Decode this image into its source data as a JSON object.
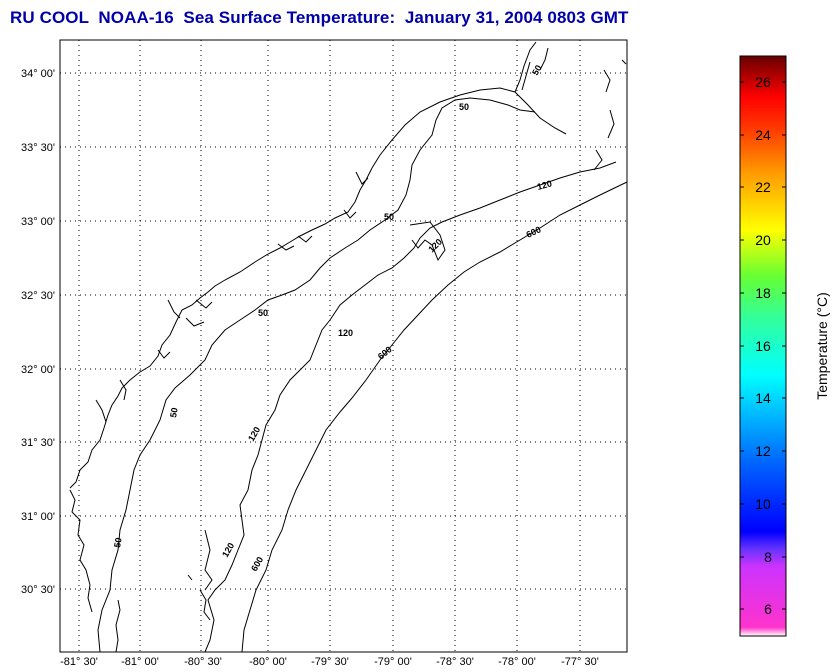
{
  "title": "RU COOL  NOAA-16  Sea Surface Temperature:  January 31, 2004 0803 GMT",
  "map": {
    "lat_labels": [
      "34° 00'",
      "33° 30'",
      "33° 00'",
      "32° 30'",
      "32° 00'",
      "31° 30'",
      "31° 00'",
      "30° 30'"
    ],
    "lon_labels": [
      "-81° 30'",
      "-81° 00'",
      "-80° 30'",
      "-80° 00'",
      "-79° 30'",
      "-79° 00'",
      "-78° 30'",
      "-78° 00'",
      "-77° 30'"
    ],
    "contour_labels": [
      "50",
      "50",
      "50",
      "50",
      "50",
      "50",
      "120",
      "120",
      "120",
      "120",
      "120",
      "600",
      "600",
      "600"
    ],
    "grid": "dotted"
  },
  "colorbar": {
    "label": "Temperature (°C)",
    "ticks": [
      "26",
      "24",
      "22",
      "20",
      "18",
      "16",
      "14",
      "12",
      "10",
      "8",
      "6"
    ],
    "range": [
      5,
      27
    ]
  },
  "colors": {
    "title": "#0000a8",
    "frame": "#000000"
  }
}
